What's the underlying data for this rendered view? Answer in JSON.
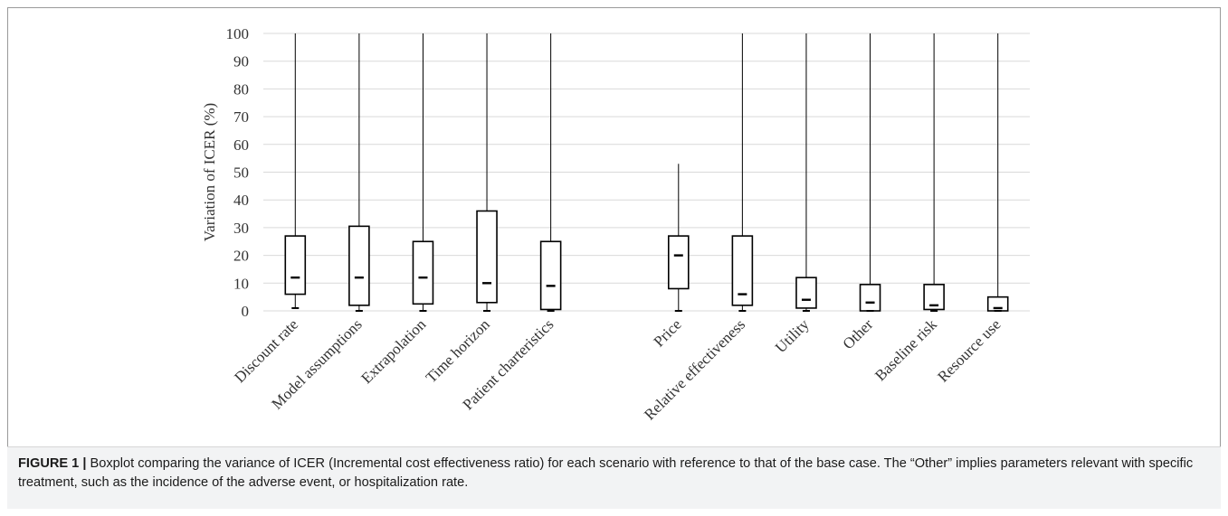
{
  "chart_data": {
    "type": "boxplot",
    "ylabel": "Variation of ICER (%)",
    "ylim": [
      0,
      100
    ],
    "yticks": [
      0,
      10,
      20,
      30,
      40,
      50,
      60,
      70,
      80,
      90,
      100
    ],
    "grid": true,
    "boxes": [
      {
        "category": "Discount rate",
        "min": 1,
        "q1": 6,
        "median": 12,
        "q3": 27,
        "max": 100
      },
      {
        "category": "Model assumptions",
        "min": 0,
        "q1": 2,
        "median": 12,
        "q3": 30.5,
        "max": 100
      },
      {
        "category": "Extrapolation",
        "min": 0,
        "q1": 2.5,
        "median": 12,
        "q3": 25,
        "max": 100
      },
      {
        "category": "Time horizon",
        "min": 0,
        "q1": 3,
        "median": 10,
        "q3": 36,
        "max": 100
      },
      {
        "category": "Patient charteristics",
        "min": 0,
        "q1": 0.5,
        "median": 9,
        "q3": 25,
        "max": 100
      },
      {
        "category": "",
        "empty": true
      },
      {
        "category": "Price",
        "min": 0,
        "q1": 8,
        "median": 20,
        "q3": 27,
        "max": 53
      },
      {
        "category": "Relative effectiveness",
        "min": 0,
        "q1": 2,
        "median": 6,
        "q3": 27,
        "max": 100
      },
      {
        "category": "Utility",
        "min": 0,
        "q1": 1,
        "median": 4,
        "q3": 12,
        "max": 100
      },
      {
        "category": "Other",
        "min": 0,
        "q1": 0,
        "median": 3,
        "q3": 9.5,
        "max": 100
      },
      {
        "category": "Baseline risk",
        "min": 0,
        "q1": 0.5,
        "median": 2,
        "q3": 9.5,
        "max": 100
      },
      {
        "category": "Resource use",
        "min": 0,
        "q1": 0,
        "median": 1,
        "q3": 5,
        "max": 100
      }
    ]
  },
  "caption": {
    "label": "FIGURE 1 |",
    "text": " Boxplot comparing the variance of ICER (Incremental cost effectiveness ratio) for each scenario with reference to that of the base case. The “Other” implies parameters relevant with specific treatment, such as the incidence of the adverse event, or hospitalization rate."
  }
}
